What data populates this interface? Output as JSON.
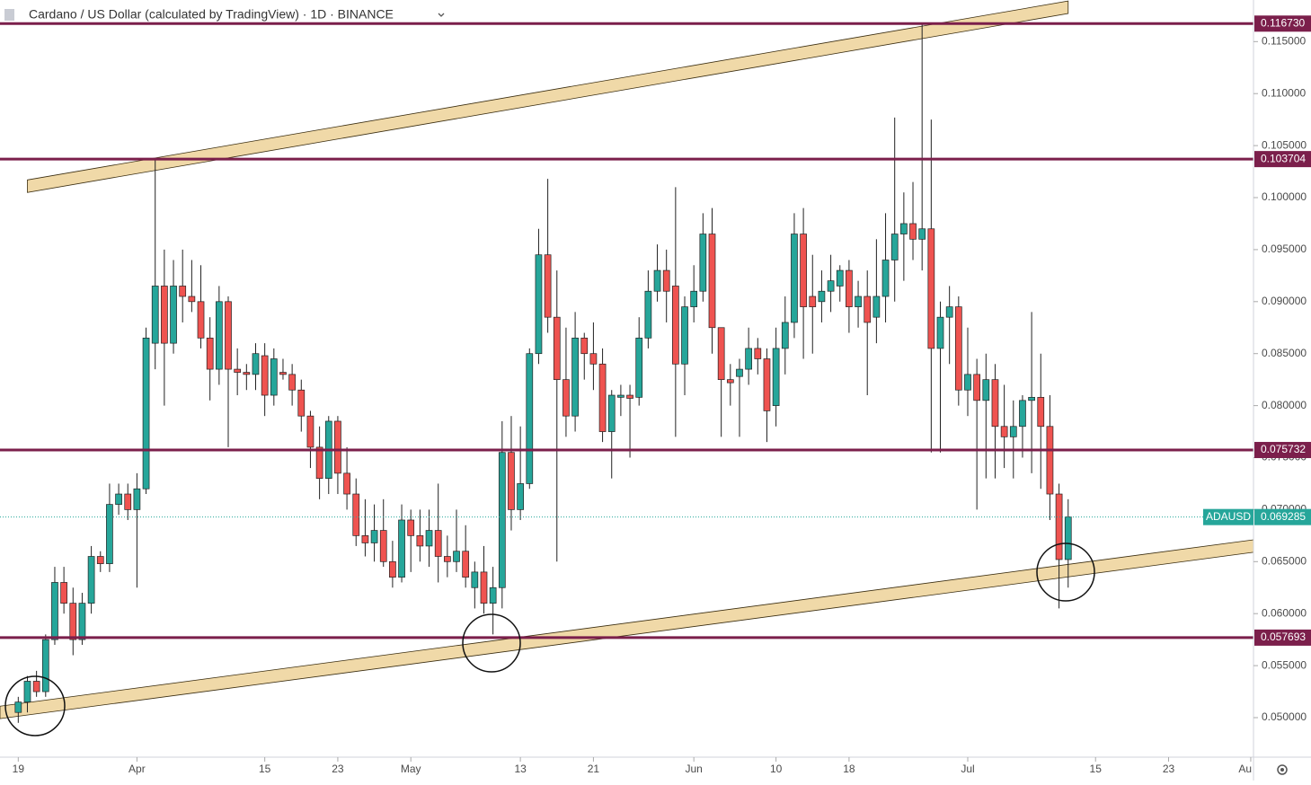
{
  "chart_data": {
    "type": "candlestick",
    "title": "Cardano / US Dollar (calculated by TradingView) · 1D · BINANCE",
    "up_color": "#26a69a",
    "down_color": "#ef5350",
    "open": [
      0.0505,
      0.0515,
      0.0535,
      0.0525,
      0.0575,
      0.063,
      0.061,
      0.0575,
      0.061,
      0.0655,
      0.0648,
      0.0705,
      0.0715,
      0.07,
      0.072,
      0.086,
      0.0915,
      0.086,
      0.0915,
      0.0905,
      0.09,
      0.0865,
      0.0835,
      0.09,
      0.0835,
      0.0832,
      0.083,
      0.0848,
      0.081,
      0.0832,
      0.083,
      0.0815,
      0.079,
      0.076,
      0.073,
      0.0785,
      0.0735,
      0.0715,
      0.0675,
      0.0668,
      0.068,
      0.065,
      0.0635,
      0.069,
      0.0675,
      0.0665,
      0.068,
      0.0655,
      0.065,
      0.066,
      0.0625,
      0.064,
      0.061,
      0.0625,
      0.0755,
      0.07,
      0.0725,
      0.085,
      0.0945,
      0.0885,
      0.0825,
      0.079,
      0.0865,
      0.085,
      0.084,
      0.0775,
      0.0808,
      0.081,
      0.0808,
      0.0865,
      0.091,
      0.093,
      0.0915,
      0.084,
      0.0895,
      0.091,
      0.0965,
      0.0875,
      0.0825,
      0.0828,
      0.0835,
      0.0855,
      0.0845,
      0.08,
      0.0855,
      0.088,
      0.0965,
      0.0905,
      0.09,
      0.091,
      0.0915,
      0.093,
      0.0895,
      0.0905,
      0.0885,
      0.0905,
      0.094,
      0.0965,
      0.0975,
      0.096,
      0.097,
      0.0855,
      0.0885,
      0.0895,
      0.0815,
      0.083,
      0.0805,
      0.0825,
      0.078,
      0.077,
      0.078,
      0.0805,
      0.0808,
      0.078,
      0.0715,
      0.0652
    ],
    "high": [
      0.052,
      0.054,
      0.0545,
      0.058,
      0.0645,
      0.0645,
      0.0625,
      0.062,
      0.0665,
      0.066,
      0.0725,
      0.0725,
      0.0725,
      0.0735,
      0.0875,
      0.1037,
      0.095,
      0.094,
      0.095,
      0.094,
      0.0935,
      0.0885,
      0.0915,
      0.0905,
      0.0855,
      0.084,
      0.086,
      0.086,
      0.0855,
      0.0845,
      0.084,
      0.0825,
      0.0795,
      0.078,
      0.079,
      0.079,
      0.076,
      0.073,
      0.071,
      0.0705,
      0.071,
      0.067,
      0.0705,
      0.07,
      0.07,
      0.07,
      0.0725,
      0.0675,
      0.07,
      0.0685,
      0.065,
      0.0665,
      0.0645,
      0.0785,
      0.079,
      0.078,
      0.0855,
      0.097,
      0.1018,
      0.093,
      0.0875,
      0.089,
      0.087,
      0.088,
      0.0855,
      0.0815,
      0.082,
      0.082,
      0.0885,
      0.093,
      0.0955,
      0.095,
      0.101,
      0.0905,
      0.0935,
      0.0985,
      0.099,
      0.0875,
      0.084,
      0.0845,
      0.0875,
      0.0865,
      0.0855,
      0.0875,
      0.0905,
      0.0985,
      0.099,
      0.0945,
      0.093,
      0.0945,
      0.0935,
      0.094,
      0.092,
      0.093,
      0.096,
      0.0985,
      0.1077,
      0.1005,
      0.1015,
      0.1167,
      0.1075,
      0.09,
      0.0915,
      0.0905,
      0.0875,
      0.0845,
      0.085,
      0.084,
      0.082,
      0.0805,
      0.081,
      0.089,
      0.085,
      0.081,
      0.0725,
      0.071
    ],
    "low": [
      0.0495,
      0.0505,
      0.052,
      0.052,
      0.057,
      0.06,
      0.056,
      0.057,
      0.06,
      0.064,
      0.064,
      0.0695,
      0.069,
      0.0625,
      0.0715,
      0.0835,
      0.08,
      0.085,
      0.088,
      0.089,
      0.0855,
      0.0805,
      0.082,
      0.076,
      0.081,
      0.0815,
      0.0815,
      0.079,
      0.08,
      0.0825,
      0.08,
      0.0775,
      0.074,
      0.071,
      0.0715,
      0.0715,
      0.07,
      0.0665,
      0.0655,
      0.065,
      0.0645,
      0.0625,
      0.063,
      0.064,
      0.065,
      0.0645,
      0.063,
      0.0635,
      0.064,
      0.0625,
      0.0605,
      0.06,
      0.058,
      0.0605,
      0.068,
      0.069,
      0.072,
      0.084,
      0.087,
      0.065,
      0.077,
      0.0775,
      0.0825,
      0.0815,
      0.0765,
      0.073,
      0.079,
      0.075,
      0.08,
      0.0855,
      0.09,
      0.088,
      0.077,
      0.081,
      0.088,
      0.09,
      0.085,
      0.077,
      0.08,
      0.077,
      0.082,
      0.083,
      0.0765,
      0.078,
      0.083,
      0.0865,
      0.0845,
      0.085,
      0.088,
      0.089,
      0.09,
      0.087,
      0.0875,
      0.081,
      0.086,
      0.088,
      0.09,
      0.092,
      0.094,
      0.093,
      0.0755,
      0.0755,
      0.084,
      0.08,
      0.079,
      0.07,
      0.073,
      0.073,
      0.074,
      0.073,
      0.075,
      0.0735,
      0.072,
      0.069,
      0.0605,
      0.0625
    ],
    "close": [
      0.0515,
      0.0535,
      0.0525,
      0.0575,
      0.063,
      0.061,
      0.0575,
      0.061,
      0.0655,
      0.0648,
      0.0705,
      0.0715,
      0.07,
      0.072,
      0.0865,
      0.0915,
      0.086,
      0.0915,
      0.0905,
      0.09,
      0.0865,
      0.0835,
      0.09,
      0.0835,
      0.0832,
      0.083,
      0.085,
      0.081,
      0.0845,
      0.083,
      0.0815,
      0.079,
      0.076,
      0.073,
      0.0785,
      0.0735,
      0.0715,
      0.0675,
      0.0668,
      0.068,
      0.065,
      0.0635,
      0.069,
      0.0675,
      0.0665,
      0.068,
      0.0655,
      0.065,
      0.066,
      0.0635,
      0.064,
      0.061,
      0.0625,
      0.0755,
      0.07,
      0.0725,
      0.085,
      0.0945,
      0.0885,
      0.0825,
      0.079,
      0.0865,
      0.085,
      0.084,
      0.0775,
      0.081,
      0.081,
      0.0807,
      0.0865,
      0.091,
      0.093,
      0.091,
      0.084,
      0.0895,
      0.091,
      0.0965,
      0.0875,
      0.0825,
      0.0822,
      0.0835,
      0.0855,
      0.0845,
      0.0795,
      0.0855,
      0.088,
      0.0965,
      0.0895,
      0.0895,
      0.091,
      0.092,
      0.093,
      0.0895,
      0.0905,
      0.088,
      0.0905,
      0.094,
      0.0965,
      0.0975,
      0.096,
      0.097,
      0.0855,
      0.0885,
      0.0895,
      0.0815,
      0.083,
      0.0805,
      0.0825,
      0.078,
      0.077,
      0.078,
      0.0805,
      0.0808,
      0.078,
      0.0715,
      0.0652,
      0.0693
    ],
    "xlim": [
      -2,
      135.3
    ],
    "ylim": [
      0.0462,
      0.119
    ],
    "xticks": [
      {
        "value": 0,
        "label": "19"
      },
      {
        "value": 13,
        "label": "Apr"
      },
      {
        "value": 27,
        "label": "15"
      },
      {
        "value": 35,
        "label": "23"
      },
      {
        "value": 43,
        "label": "May"
      },
      {
        "value": 55,
        "label": "13"
      },
      {
        "value": 63,
        "label": "21"
      },
      {
        "value": 74,
        "label": "Jun"
      },
      {
        "value": 83,
        "label": "10"
      },
      {
        "value": 91,
        "label": "18"
      },
      {
        "value": 104,
        "label": "Jul"
      },
      {
        "value": 118,
        "label": "15"
      },
      {
        "value": 126,
        "label": "23"
      },
      {
        "value": 135,
        "label": "Au"
      }
    ],
    "yticks": [
      {
        "value": 0.05,
        "label": "0.050000"
      },
      {
        "value": 0.055,
        "label": "0.055000"
      },
      {
        "value": 0.06,
        "label": "0.060000"
      },
      {
        "value": 0.065,
        "label": "0.065000"
      },
      {
        "value": 0.07,
        "label": "0.070000"
      },
      {
        "value": 0.075,
        "label": "0.075000"
      },
      {
        "value": 0.08,
        "label": "0.080000"
      },
      {
        "value": 0.085,
        "label": "0.085000"
      },
      {
        "value": 0.09,
        "label": "0.090000"
      },
      {
        "value": 0.095,
        "label": "0.095000"
      },
      {
        "value": 0.1,
        "label": "0.100000"
      },
      {
        "value": 0.105,
        "label": "0.105000"
      },
      {
        "value": 0.11,
        "label": "0.110000"
      },
      {
        "value": 0.115,
        "label": "0.115000"
      }
    ],
    "levels": [
      {
        "value": 0.11673,
        "label": "0.116730"
      },
      {
        "value": 0.103704,
        "label": "0.103704"
      },
      {
        "value": 0.075732,
        "label": "0.075732"
      },
      {
        "value": 0.057693,
        "label": "0.057693"
      }
    ],
    "level_color": "#7b1f4b",
    "last_price": {
      "name": "ADAUSD",
      "value": 0.069285,
      "label": "0.069285"
    },
    "last_price_color": "#26a69a",
    "channels": [
      {
        "x": [
          1,
          115
        ],
        "y": [
          0.1011,
          0.1183
        ],
        "width": 0.0012
      },
      {
        "x": [
          -2,
          135.3
        ],
        "y": [
          0.0505,
          0.0665
        ],
        "width": 0.0012
      }
    ],
    "channel_color": "#f0d9a8"
  }
}
